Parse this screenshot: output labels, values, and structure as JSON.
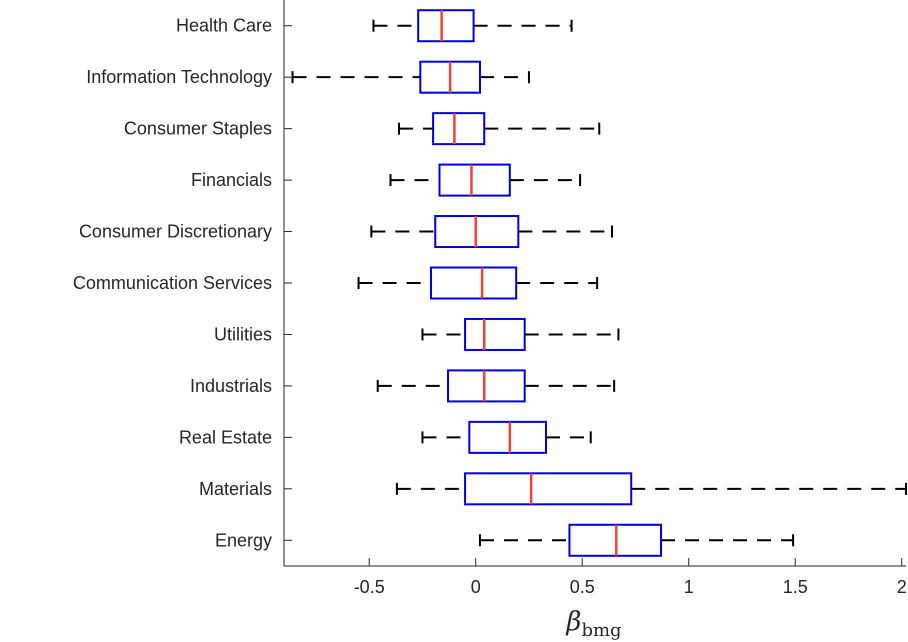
{
  "chart_data": {
    "type": "boxplot",
    "orientation": "horizontal",
    "xlabel": {
      "symbol": "β",
      "subscript": "bmg"
    },
    "ylabel": "",
    "xlim": [
      -0.9,
      2.02
    ],
    "xticks": [
      -0.5,
      0,
      0.5,
      1,
      1.5,
      2
    ],
    "xtick_labels": [
      "-0.5",
      "0",
      "0.5",
      "1",
      "1.5",
      "2"
    ],
    "grid": false,
    "colors": {
      "box": "#0000dd",
      "median": "#ee4433",
      "whisker": "#000000",
      "axis": "#262626"
    },
    "categories": [
      {
        "name": "Health Care",
        "whisker_low": -0.48,
        "q1": -0.27,
        "median": -0.16,
        "q3": -0.01,
        "whisker_high": 0.45
      },
      {
        "name": "Information Technology",
        "whisker_low": -0.86,
        "q1": -0.26,
        "median": -0.12,
        "q3": 0.02,
        "whisker_high": 0.25
      },
      {
        "name": "Consumer Staples",
        "whisker_low": -0.36,
        "q1": -0.2,
        "median": -0.1,
        "q3": 0.04,
        "whisker_high": 0.58
      },
      {
        "name": "Financials",
        "whisker_low": -0.4,
        "q1": -0.17,
        "median": -0.02,
        "q3": 0.16,
        "whisker_high": 0.49
      },
      {
        "name": "Consumer Discretionary",
        "whisker_low": -0.49,
        "q1": -0.19,
        "median": 0.0,
        "q3": 0.2,
        "whisker_high": 0.64
      },
      {
        "name": "Communication Services",
        "whisker_low": -0.55,
        "q1": -0.21,
        "median": 0.03,
        "q3": 0.19,
        "whisker_high": 0.57
      },
      {
        "name": "Utilities",
        "whisker_low": -0.25,
        "q1": -0.05,
        "median": 0.04,
        "q3": 0.23,
        "whisker_high": 0.67
      },
      {
        "name": "Industrials",
        "whisker_low": -0.46,
        "q1": -0.13,
        "median": 0.04,
        "q3": 0.23,
        "whisker_high": 0.65
      },
      {
        "name": "Real Estate",
        "whisker_low": -0.25,
        "q1": -0.03,
        "median": 0.16,
        "q3": 0.33,
        "whisker_high": 0.54
      },
      {
        "name": "Materials",
        "whisker_low": -0.37,
        "q1": -0.05,
        "median": 0.26,
        "q3": 0.73,
        "whisker_high": 2.02
      },
      {
        "name": "Energy",
        "whisker_low": 0.02,
        "q1": 0.44,
        "median": 0.66,
        "q3": 0.87,
        "whisker_high": 1.49
      }
    ]
  }
}
